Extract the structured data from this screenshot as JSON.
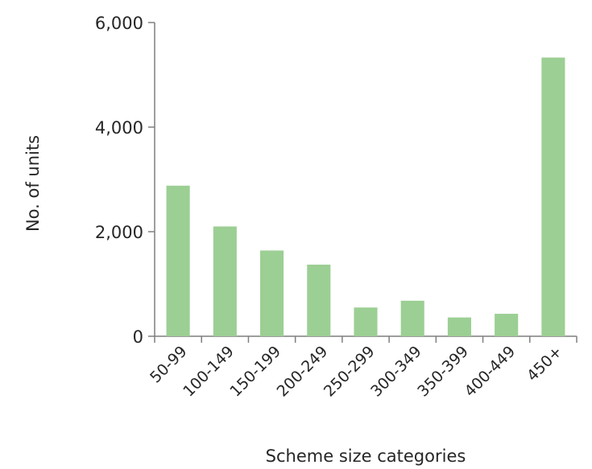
{
  "chart_data": {
    "type": "bar",
    "categories": [
      "50-99",
      "100-149",
      "150-199",
      "200-249",
      "250-299",
      "300-349",
      "350-399",
      "400-449",
      "450+"
    ],
    "values": [
      2880,
      2100,
      1640,
      1370,
      550,
      680,
      360,
      430,
      5330
    ],
    "xlabel": "Scheme size categories",
    "ylabel": "No. of units",
    "ylim": [
      0,
      6000
    ],
    "yticks": [
      0,
      2000,
      4000,
      6000
    ],
    "ytick_labels": [
      "0",
      "2,000",
      "4,000",
      "6,000"
    ],
    "bar_color": "#9ccf94",
    "grid": false,
    "legend": "none"
  }
}
